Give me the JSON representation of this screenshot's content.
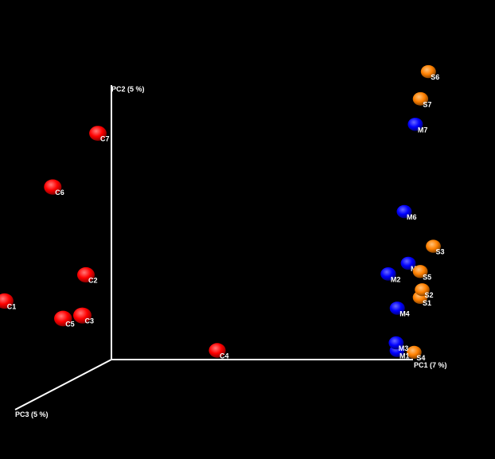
{
  "chart_data": {
    "type": "scatter",
    "projection": "3d",
    "background": "#000000",
    "axes": {
      "x": {
        "label": "PC1 (7 %)"
      },
      "y": {
        "label": "PC2 (5 %)"
      },
      "z": {
        "label": "PC3 (5 %)"
      }
    },
    "groups": [
      {
        "id": "C",
        "color": "#ff0000"
      },
      {
        "id": "M",
        "color": "#0000ff"
      },
      {
        "id": "S",
        "color": "#ff8000"
      }
    ],
    "points": [
      {
        "label": "C1",
        "group": "C",
        "x": -0.22,
        "y": 0.29,
        "z": 0.42
      },
      {
        "label": "C2",
        "group": "C",
        "x": 0.04,
        "y": 0.38,
        "z": 0.39
      },
      {
        "label": "C3",
        "group": "C",
        "x": 0.06,
        "y": 0.25,
        "z": 0.49
      },
      {
        "label": "C4",
        "group": "C",
        "x": 0.45,
        "y": 0.09,
        "z": 0.31
      },
      {
        "label": "C5",
        "group": "C",
        "x": -0.02,
        "y": 0.23,
        "z": 0.44
      },
      {
        "label": "C6",
        "group": "C",
        "x": -0.07,
        "y": 0.7,
        "z": 0.39
      },
      {
        "label": "C7",
        "group": "C",
        "x": 0.07,
        "y": 0.89,
        "z": 0.36
      },
      {
        "label": "M1",
        "group": "M",
        "x": 0.96,
        "y": 0.04,
        "z": 0.04
      },
      {
        "label": "M2",
        "group": "M",
        "x": 0.95,
        "y": 0.33,
        "z": 0.1
      },
      {
        "label": "M3",
        "group": "M",
        "x": 0.96,
        "y": 0.07,
        "z": 0.05
      },
      {
        "label": "M4",
        "group": "M",
        "x": 0.97,
        "y": 0.2,
        "z": 0.07
      },
      {
        "label": "M5",
        "group": "M",
        "x": 1.0,
        "y": 0.36,
        "z": 0.05
      },
      {
        "label": "M6",
        "group": "M",
        "x": 0.99,
        "y": 0.55,
        "z": 0.06
      },
      {
        "label": "M7",
        "group": "M",
        "x": 1.03,
        "y": 0.87,
        "z": 0.07
      },
      {
        "label": "S1",
        "group": "S",
        "x": 1.03,
        "y": 0.23,
        "z": 0.02
      },
      {
        "label": "S2",
        "group": "S",
        "x": 1.04,
        "y": 0.26,
        "z": 0.03
      },
      {
        "label": "S3",
        "group": "S",
        "x": 1.08,
        "y": 0.42,
        "z": 0.04
      },
      {
        "label": "S4",
        "group": "S",
        "x": 1.01,
        "y": 0.03,
        "z": 0.02
      },
      {
        "label": "S5",
        "group": "S",
        "x": 1.04,
        "y": 0.33,
        "z": 0.05
      },
      {
        "label": "S6",
        "group": "S",
        "x": 1.07,
        "y": 1.06,
        "z": 0.06
      },
      {
        "label": "S7",
        "group": "S",
        "x": 1.06,
        "y": 0.97,
        "z": 0.11
      }
    ]
  }
}
